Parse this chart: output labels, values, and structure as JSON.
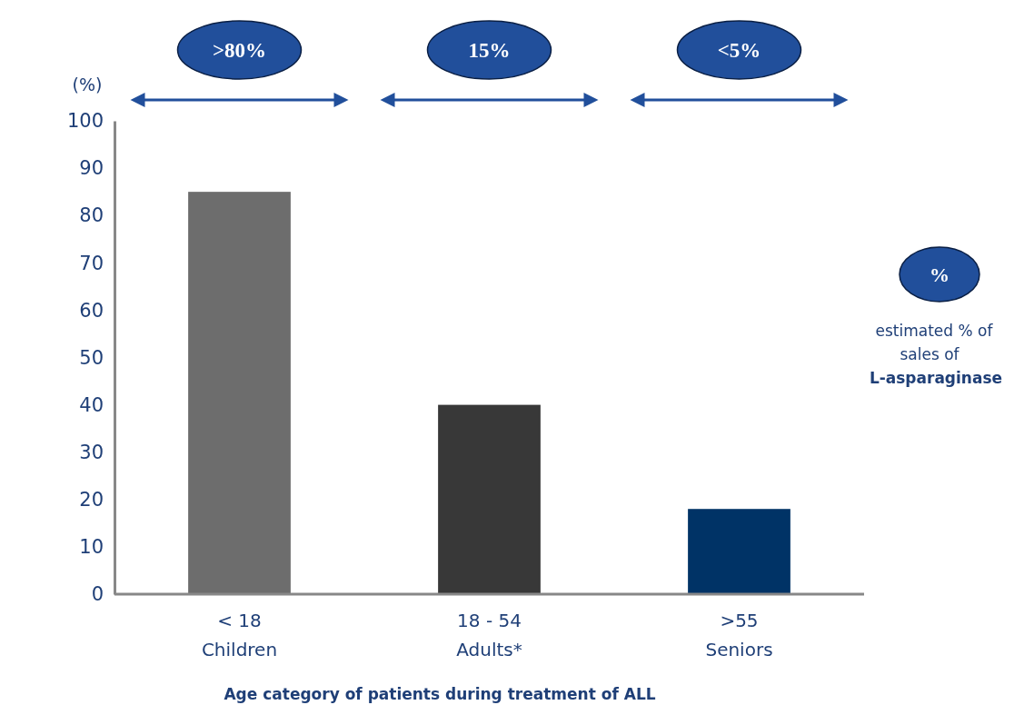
{
  "chart_data": {
    "type": "bar",
    "xlabel": "Age category of patients during treatment of ALL",
    "ylabel": "(%)",
    "categories": [
      "< 18\nChildren",
      "18 - 54\nAdults*",
      ">55\nSeniors"
    ],
    "values": [
      85,
      40,
      18
    ],
    "colors": [
      "#6d6d6d",
      "#383838",
      "#003366"
    ],
    "ylim": [
      0,
      100
    ],
    "yticks": [
      0,
      10,
      20,
      30,
      40,
      50,
      60,
      70,
      80,
      90,
      100
    ],
    "grid": false,
    "annotations": [
      ">80%",
      "15%",
      "<5%",
      "%",
      "estimated % of sales of L-asparaginase"
    ]
  }
}
